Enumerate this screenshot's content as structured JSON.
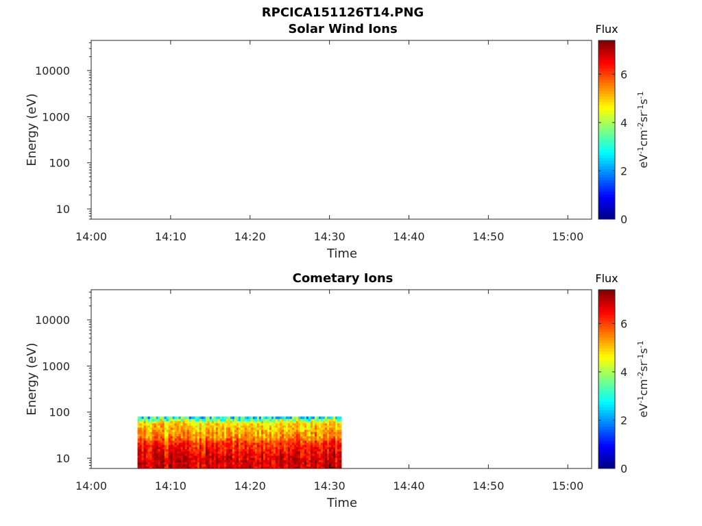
{
  "figure": {
    "title": "RPCICA151126T14.PNG"
  },
  "chart_data": [
    {
      "type": "heatmap",
      "title": "Solar Wind Ions",
      "xlabel": "Time",
      "ylabel": "Energy (eV)",
      "x_ticks": [
        "14:00",
        "14:10",
        "14:20",
        "14:30",
        "14:40",
        "14:50",
        "15:00"
      ],
      "x_range": [
        "14:00",
        "15:03"
      ],
      "y_scale": "log",
      "y_ticks": [
        "10",
        "100",
        "1000",
        "10000"
      ],
      "y_range": [
        6,
        45000
      ],
      "colorbar": {
        "title": "Flux",
        "ticks": [
          "0",
          "2",
          "4",
          "6"
        ],
        "range": [
          0,
          7.4
        ],
        "unit": "eV-1cm-2sr-1s-1",
        "colormap": "jet"
      },
      "data_regions": []
    },
    {
      "type": "heatmap",
      "title": "Cometary Ions",
      "xlabel": "Time",
      "ylabel": "Energy (eV)",
      "x_ticks": [
        "14:00",
        "14:10",
        "14:20",
        "14:30",
        "14:40",
        "14:50",
        "15:00"
      ],
      "x_range": [
        "14:00",
        "15:03"
      ],
      "y_scale": "log",
      "y_ticks": [
        "10",
        "100",
        "1000",
        "10000"
      ],
      "y_range": [
        6,
        45000
      ],
      "colorbar": {
        "title": "Flux",
        "ticks": [
          "0",
          "2",
          "4",
          "6"
        ],
        "range": [
          0,
          7.4
        ],
        "unit": "eV-1cm-2sr-1s-1",
        "colormap": "jet"
      },
      "data_regions": [
        {
          "time_start": "14:05:50",
          "time_end": "14:31:30",
          "energy_min": 6,
          "energy_max": 80,
          "flux_profile": [
            {
              "energy": 6,
              "flux": 6.8
            },
            {
              "energy": 10,
              "flux": 6.7
            },
            {
              "energy": 20,
              "flux": 6.2
            },
            {
              "energy": 30,
              "flux": 5.4
            },
            {
              "energy": 50,
              "flux": 5.0
            },
            {
              "energy": 70,
              "flux": 4.4
            },
            {
              "energy": 80,
              "flux": 3.0
            }
          ]
        }
      ]
    }
  ]
}
